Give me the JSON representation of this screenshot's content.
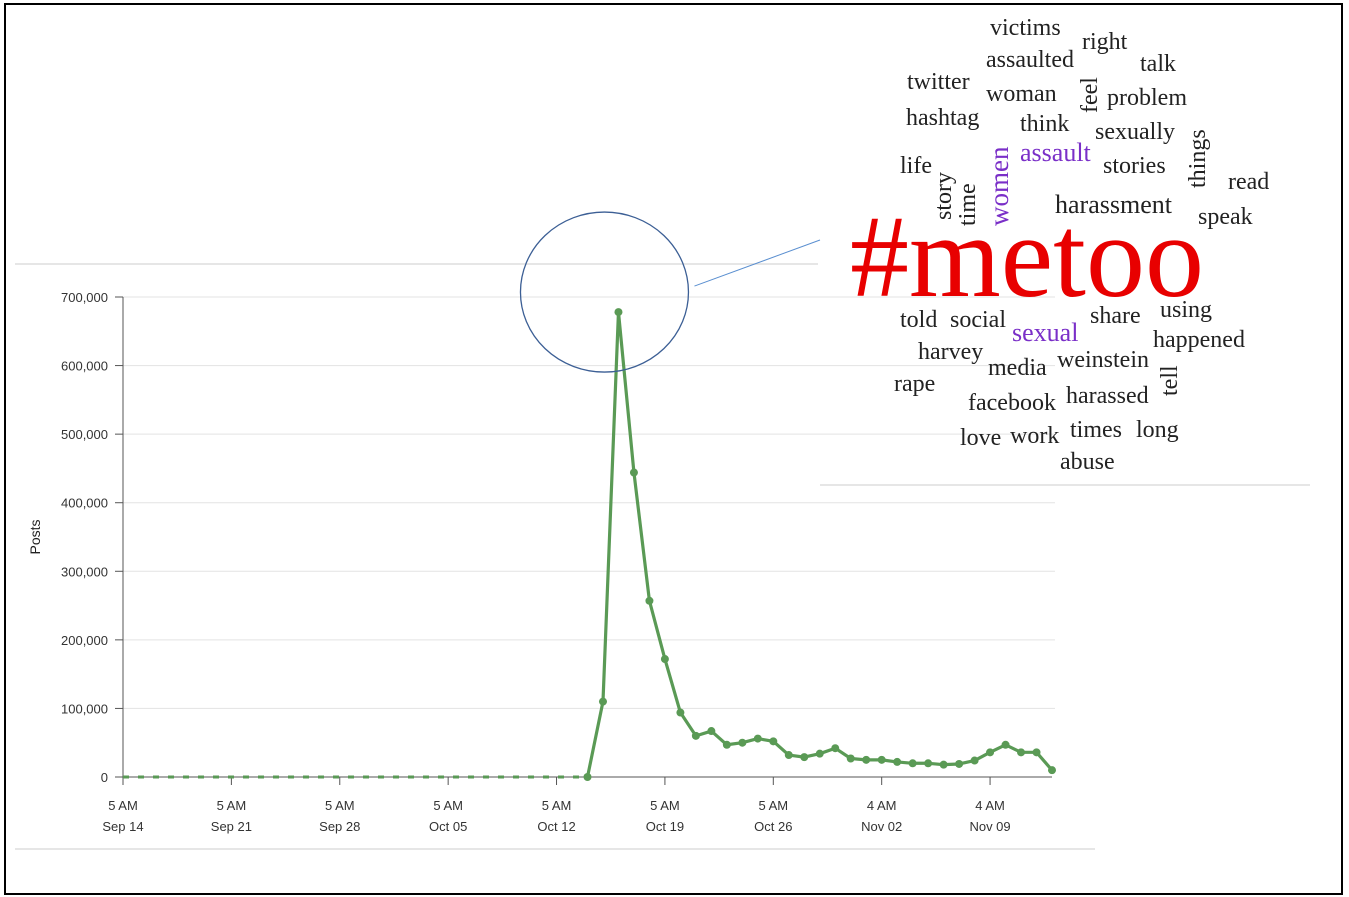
{
  "chart_data": {
    "type": "line",
    "ylabel": "Posts",
    "ylim": [
      0,
      700000
    ],
    "yticks": [
      0,
      100000,
      200000,
      300000,
      400000,
      500000,
      600000,
      700000
    ],
    "ytick_labels": [
      "0",
      "100,000",
      "200,000",
      "300,000",
      "400,000",
      "500,000",
      "600,000",
      "700,000"
    ],
    "xticks": [
      {
        "day": 0,
        "time": "5 AM",
        "date": "Sep 14"
      },
      {
        "day": 7,
        "time": "5 AM",
        "date": "Sep 21"
      },
      {
        "day": 14,
        "time": "5 AM",
        "date": "Sep 28"
      },
      {
        "day": 21,
        "time": "5 AM",
        "date": "Oct 05"
      },
      {
        "day": 28,
        "time": "5 AM",
        "date": "Oct 12"
      },
      {
        "day": 35,
        "time": "5 AM",
        "date": "Oct 19"
      },
      {
        "day": 42,
        "time": "5 AM",
        "date": "Oct 26"
      },
      {
        "day": 49,
        "time": "4 AM",
        "date": "Nov 02"
      },
      {
        "day": 56,
        "time": "4 AM",
        "date": "Nov 09"
      }
    ],
    "grid": true,
    "line_color": "#5a9a55",
    "series": [
      {
        "x": [
          0,
          1,
          2,
          3,
          4,
          5,
          6,
          7,
          8,
          9,
          10,
          11,
          12,
          13,
          14,
          15,
          16,
          17,
          18,
          19,
          20,
          21,
          22,
          23,
          24,
          25,
          26,
          27,
          28,
          29,
          30,
          31,
          32,
          33,
          34,
          35,
          36,
          37,
          38,
          39,
          40,
          41,
          42,
          43,
          44,
          45,
          46,
          47,
          48,
          49,
          50,
          51,
          52,
          53,
          54,
          55,
          56,
          57,
          58,
          59,
          60
        ],
        "y": [
          0,
          0,
          0,
          0,
          0,
          0,
          0,
          0,
          0,
          0,
          0,
          0,
          0,
          0,
          0,
          0,
          0,
          0,
          0,
          0,
          0,
          0,
          0,
          0,
          0,
          0,
          0,
          0,
          0,
          0,
          0,
          110000,
          678000,
          444000,
          257000,
          172000,
          94000,
          60000,
          67000,
          47000,
          50000,
          56000,
          52000,
          32000,
          29000,
          34000,
          42000,
          27000,
          25000,
          25000,
          22000,
          20000,
          20000,
          18000,
          19000,
          24000,
          36000,
          47000,
          36000,
          36000,
          10000
        ]
      }
    ],
    "annotation": {
      "type": "ellipse-callout",
      "target": "peak"
    }
  },
  "word_cloud": {
    "words": [
      {
        "text": "victims",
        "size": 24,
        "color": "#222222",
        "vertical": false
      },
      {
        "text": "right",
        "size": 24,
        "color": "#222222",
        "vertical": false
      },
      {
        "text": "assaulted",
        "size": 24,
        "color": "#222222",
        "vertical": false
      },
      {
        "text": "talk",
        "size": 24,
        "color": "#222222",
        "vertical": false
      },
      {
        "text": "twitter",
        "size": 24,
        "color": "#222222",
        "vertical": false
      },
      {
        "text": "woman",
        "size": 24,
        "color": "#222222",
        "vertical": false
      },
      {
        "text": "feel",
        "size": 24,
        "color": "#222222",
        "vertical": true
      },
      {
        "text": "problem",
        "size": 24,
        "color": "#222222",
        "vertical": false
      },
      {
        "text": "hashtag",
        "size": 24,
        "color": "#222222",
        "vertical": false
      },
      {
        "text": "think",
        "size": 24,
        "color": "#222222",
        "vertical": false
      },
      {
        "text": "sexually",
        "size": 24,
        "color": "#222222",
        "vertical": false
      },
      {
        "text": "things",
        "size": 24,
        "color": "#222222",
        "vertical": true
      },
      {
        "text": "women",
        "size": 27,
        "color": "#7a2fc8",
        "vertical": true
      },
      {
        "text": "assault",
        "size": 26,
        "color": "#7a2fc8",
        "vertical": false
      },
      {
        "text": "life",
        "size": 24,
        "color": "#222222",
        "vertical": false
      },
      {
        "text": "stories",
        "size": 24,
        "color": "#222222",
        "vertical": false
      },
      {
        "text": "read",
        "size": 24,
        "color": "#222222",
        "vertical": false
      },
      {
        "text": "story",
        "size": 24,
        "color": "#222222",
        "vertical": true
      },
      {
        "text": "time",
        "size": 24,
        "color": "#222222",
        "vertical": true
      },
      {
        "text": "harassment",
        "size": 26,
        "color": "#222222",
        "vertical": false
      },
      {
        "text": "speak",
        "size": 24,
        "color": "#222222",
        "vertical": false
      },
      {
        "text": "#metoo",
        "size": 118,
        "color": "#e80000",
        "vertical": false
      },
      {
        "text": "told",
        "size": 24,
        "color": "#222222",
        "vertical": false
      },
      {
        "text": "social",
        "size": 24,
        "color": "#222222",
        "vertical": false
      },
      {
        "text": "share",
        "size": 24,
        "color": "#222222",
        "vertical": false
      },
      {
        "text": "using",
        "size": 24,
        "color": "#222222",
        "vertical": false
      },
      {
        "text": "sexual",
        "size": 26,
        "color": "#7a2fc8",
        "vertical": false
      },
      {
        "text": "happened",
        "size": 24,
        "color": "#222222",
        "vertical": false
      },
      {
        "text": "harvey",
        "size": 24,
        "color": "#222222",
        "vertical": false
      },
      {
        "text": "media",
        "size": 24,
        "color": "#222222",
        "vertical": false
      },
      {
        "text": "weinstein",
        "size": 24,
        "color": "#222222",
        "vertical": false
      },
      {
        "text": "tell",
        "size": 24,
        "color": "#222222",
        "vertical": true
      },
      {
        "text": "rape",
        "size": 24,
        "color": "#222222",
        "vertical": false
      },
      {
        "text": "facebook",
        "size": 24,
        "color": "#222222",
        "vertical": false
      },
      {
        "text": "harassed",
        "size": 24,
        "color": "#222222",
        "vertical": false
      },
      {
        "text": "love",
        "size": 24,
        "color": "#222222",
        "vertical": false
      },
      {
        "text": "work",
        "size": 24,
        "color": "#222222",
        "vertical": false
      },
      {
        "text": "times",
        "size": 24,
        "color": "#222222",
        "vertical": false
      },
      {
        "text": "long",
        "size": 24,
        "color": "#222222",
        "vertical": false
      },
      {
        "text": "abuse",
        "size": 24,
        "color": "#222222",
        "vertical": false
      }
    ]
  }
}
